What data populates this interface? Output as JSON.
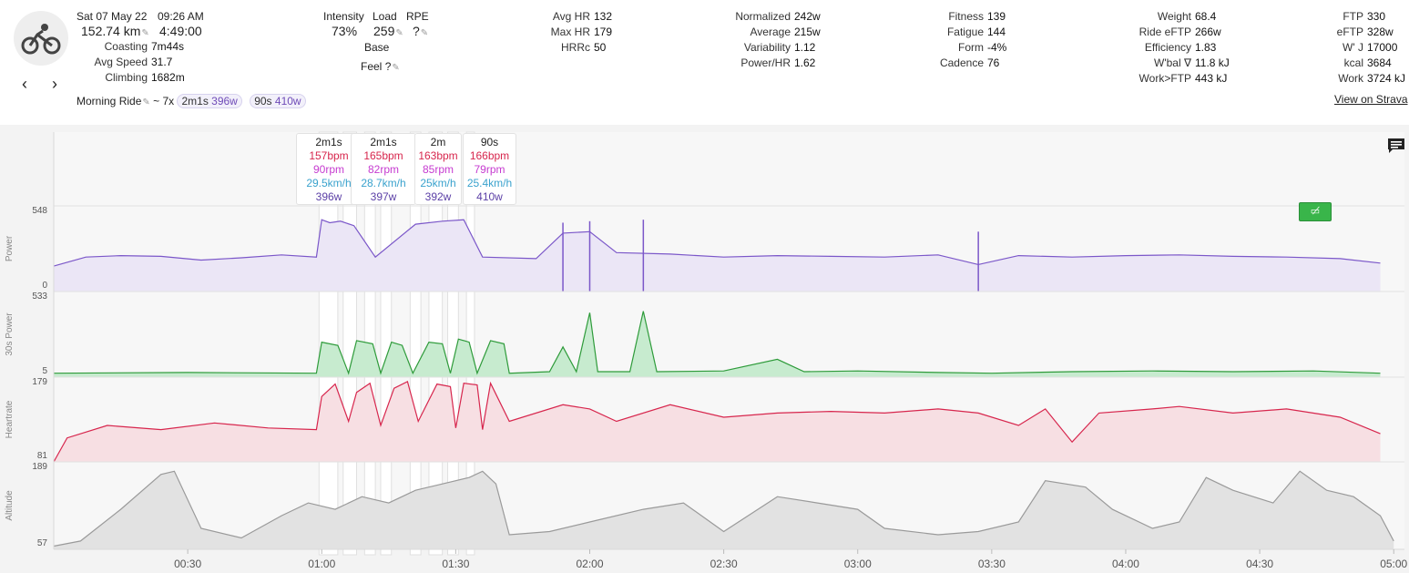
{
  "activity": {
    "date": "Sat 07 May 22",
    "time": "09:26 AM",
    "distance": "152.74 km",
    "duration": "4:49:00",
    "name": "Morning Ride",
    "intervals_count": "~ 7x",
    "interval_chips": [
      {
        "dur": "2m1s",
        "watts": "396w"
      },
      {
        "dur": "90s",
        "watts": "410w"
      }
    ]
  },
  "nav": {
    "prev": "‹",
    "next": "›"
  },
  "left_stats": [
    {
      "label": "Coasting",
      "value": "7m44s"
    },
    {
      "label": "Avg Speed",
      "value": "31.7"
    },
    {
      "label": "Climbing",
      "value": "1682m"
    }
  ],
  "load": {
    "intensity_label": "Intensity",
    "intensity_value": "73%",
    "load_label": "Load",
    "load_value": "259",
    "rpe_label": "RPE",
    "rpe_value": "?",
    "base_label": "Base",
    "feel_label": "Feel",
    "feel_value": "?"
  },
  "col_hr": [
    {
      "label": "Avg HR",
      "value": "132"
    },
    {
      "label": "Max HR",
      "value": "179"
    },
    {
      "label": "HRRc",
      "value": "50"
    }
  ],
  "col_power": [
    {
      "label": "Normalized",
      "value": "242w"
    },
    {
      "label": "Average",
      "value": "215w"
    },
    {
      "label": "Variability",
      "value": "1.12"
    },
    {
      "label": "Power/HR",
      "value": "1.62"
    }
  ],
  "col_fitness": [
    {
      "label": "Fitness",
      "value": "139"
    },
    {
      "label": "Fatigue",
      "value": "144"
    },
    {
      "label": "Form",
      "value": "-4%"
    },
    {
      "label": "Cadence",
      "value": "76"
    }
  ],
  "col_weight": [
    {
      "label": "Weight",
      "value": "68.4"
    },
    {
      "label": "Ride eFTP",
      "value": "266w"
    },
    {
      "label": "Efficiency",
      "value": "1.83"
    },
    {
      "label": "W'bal ∇",
      "value": "11.8 kJ"
    },
    {
      "label": "Work>FTP",
      "value": "443 kJ"
    }
  ],
  "col_ftp": [
    {
      "label": "FTP",
      "value": "330"
    },
    {
      "label": "eFTP",
      "value": "328w"
    },
    {
      "label": "W' J",
      "value": "17000"
    },
    {
      "label": "kcal",
      "value": "3684"
    },
    {
      "label": "Work",
      "value": "3724 kJ"
    }
  ],
  "strava_link": "View on Strava",
  "interval_tooltips": [
    {
      "dur": "2m1s",
      "hr": "157bpm",
      "cad": "90rpm",
      "speed": "29.5km/h",
      "power": "396w"
    },
    {
      "dur": "2m1s",
      "hr": "165bpm",
      "cad": "82rpm",
      "speed": "28.7km/h",
      "power": "397w"
    },
    {
      "dur": "2m",
      "hr": "163bpm",
      "cad": "85rpm",
      "speed": "25km/h",
      "power": "392w"
    },
    {
      "dur": "90s",
      "hr": "166bpm",
      "cad": "79rpm",
      "speed": "25.4km/h",
      "power": "410w"
    }
  ],
  "chart_data": {
    "type": "line",
    "x_unit": "h:mm",
    "x_ticks": [
      "00:30",
      "01:00",
      "01:30",
      "02:00",
      "02:30",
      "03:00",
      "03:30",
      "04:00",
      "04:30",
      "05:00"
    ],
    "panels": [
      {
        "name": "Power",
        "ymin": 0,
        "ymax": 548,
        "color": "#7b57c9",
        "fill": "#ebe6f6",
        "points": [
          [
            0,
            170
          ],
          [
            0.12,
            230
          ],
          [
            0.25,
            240
          ],
          [
            0.4,
            235
          ],
          [
            0.55,
            210
          ],
          [
            0.7,
            225
          ],
          [
            0.85,
            245
          ],
          [
            0.98,
            230
          ],
          [
            1.0,
            480
          ],
          [
            1.03,
            460
          ],
          [
            1.07,
            470
          ],
          [
            1.12,
            440
          ],
          [
            1.2,
            230
          ],
          [
            1.35,
            450
          ],
          [
            1.45,
            470
          ],
          [
            1.53,
            480
          ],
          [
            1.6,
            230
          ],
          [
            1.8,
            220
          ],
          [
            1.9,
            390
          ],
          [
            2.0,
            400
          ],
          [
            2.1,
            260
          ],
          [
            2.3,
            250
          ],
          [
            2.5,
            230
          ],
          [
            2.7,
            240
          ],
          [
            2.9,
            235
          ],
          [
            3.1,
            230
          ],
          [
            3.3,
            245
          ],
          [
            3.45,
            180
          ],
          [
            3.6,
            240
          ],
          [
            3.8,
            230
          ],
          [
            4.0,
            240
          ],
          [
            4.2,
            245
          ],
          [
            4.4,
            235
          ],
          [
            4.6,
            230
          ],
          [
            4.8,
            220
          ],
          [
            4.95,
            190
          ]
        ],
        "spikes": [
          [
            1.9,
            460
          ],
          [
            2.0,
            470
          ],
          [
            2.2,
            480
          ],
          [
            3.45,
            400
          ]
        ]
      },
      {
        "name": "30s Power",
        "ymin": 5,
        "ymax": 533,
        "color": "#2e9b3a",
        "fill": "#c7ebcf",
        "points": [
          [
            0,
            30
          ],
          [
            0.5,
            35
          ],
          [
            0.98,
            30
          ],
          [
            1.0,
            230
          ],
          [
            1.06,
            210
          ],
          [
            1.1,
            30
          ],
          [
            1.13,
            240
          ],
          [
            1.19,
            220
          ],
          [
            1.22,
            30
          ],
          [
            1.26,
            230
          ],
          [
            1.3,
            210
          ],
          [
            1.34,
            30
          ],
          [
            1.4,
            230
          ],
          [
            1.45,
            220
          ],
          [
            1.48,
            30
          ],
          [
            1.51,
            250
          ],
          [
            1.55,
            230
          ],
          [
            1.58,
            30
          ],
          [
            1.63,
            240
          ],
          [
            1.68,
            220
          ],
          [
            1.7,
            30
          ],
          [
            1.85,
            40
          ],
          [
            1.9,
            200
          ],
          [
            1.95,
            40
          ],
          [
            2.0,
            420
          ],
          [
            2.03,
            40
          ],
          [
            2.15,
            40
          ],
          [
            2.2,
            430
          ],
          [
            2.25,
            40
          ],
          [
            2.5,
            45
          ],
          [
            2.7,
            120
          ],
          [
            2.8,
            40
          ],
          [
            3.0,
            45
          ],
          [
            3.3,
            35
          ],
          [
            3.5,
            30
          ],
          [
            3.8,
            40
          ],
          [
            4.1,
            45
          ],
          [
            4.4,
            40
          ],
          [
            4.7,
            45
          ],
          [
            4.95,
            30
          ]
        ]
      },
      {
        "name": "Heartrate",
        "ymin": 81,
        "ymax": 179,
        "color": "#d7264d",
        "fill": "#f7dfe3",
        "points": [
          [
            0,
            81
          ],
          [
            0.05,
            110
          ],
          [
            0.2,
            125
          ],
          [
            0.4,
            120
          ],
          [
            0.6,
            128
          ],
          [
            0.8,
            122
          ],
          [
            0.98,
            120
          ],
          [
            1.0,
            160
          ],
          [
            1.05,
            175
          ],
          [
            1.1,
            130
          ],
          [
            1.13,
            165
          ],
          [
            1.18,
            176
          ],
          [
            1.22,
            125
          ],
          [
            1.27,
            170
          ],
          [
            1.32,
            178
          ],
          [
            1.36,
            130
          ],
          [
            1.43,
            175
          ],
          [
            1.48,
            172
          ],
          [
            1.5,
            122
          ],
          [
            1.53,
            176
          ],
          [
            1.58,
            174
          ],
          [
            1.6,
            120
          ],
          [
            1.63,
            176
          ],
          [
            1.7,
            130
          ],
          [
            1.9,
            150
          ],
          [
            2.0,
            145
          ],
          [
            2.1,
            130
          ],
          [
            2.3,
            150
          ],
          [
            2.5,
            135
          ],
          [
            2.7,
            140
          ],
          [
            2.9,
            142
          ],
          [
            3.1,
            140
          ],
          [
            3.3,
            145
          ],
          [
            3.45,
            140
          ],
          [
            3.6,
            125
          ],
          [
            3.7,
            145
          ],
          [
            3.8,
            105
          ],
          [
            3.9,
            140
          ],
          [
            4.1,
            145
          ],
          [
            4.2,
            148
          ],
          [
            4.4,
            140
          ],
          [
            4.6,
            145
          ],
          [
            4.8,
            135
          ],
          [
            4.95,
            115
          ]
        ]
      },
      {
        "name": "Altitude",
        "ymin": 57,
        "ymax": 189,
        "color": "#9a9a9a",
        "fill": "#e2e2e2",
        "points": [
          [
            0,
            62
          ],
          [
            0.1,
            70
          ],
          [
            0.25,
            120
          ],
          [
            0.4,
            175
          ],
          [
            0.45,
            180
          ],
          [
            0.55,
            90
          ],
          [
            0.7,
            75
          ],
          [
            0.85,
            110
          ],
          [
            0.95,
            130
          ],
          [
            1.05,
            120
          ],
          [
            1.15,
            140
          ],
          [
            1.25,
            130
          ],
          [
            1.35,
            150
          ],
          [
            1.45,
            160
          ],
          [
            1.55,
            170
          ],
          [
            1.6,
            180
          ],
          [
            1.65,
            160
          ],
          [
            1.7,
            80
          ],
          [
            1.85,
            85
          ],
          [
            2.0,
            100
          ],
          [
            2.2,
            120
          ],
          [
            2.35,
            130
          ],
          [
            2.5,
            85
          ],
          [
            2.7,
            140
          ],
          [
            2.85,
            130
          ],
          [
            3.0,
            120
          ],
          [
            3.1,
            90
          ],
          [
            3.3,
            80
          ],
          [
            3.45,
            85
          ],
          [
            3.6,
            100
          ],
          [
            3.7,
            165
          ],
          [
            3.85,
            155
          ],
          [
            3.95,
            120
          ],
          [
            4.1,
            90
          ],
          [
            4.2,
            100
          ],
          [
            4.3,
            170
          ],
          [
            4.4,
            150
          ],
          [
            4.55,
            130
          ],
          [
            4.65,
            180
          ],
          [
            4.75,
            150
          ],
          [
            4.85,
            140
          ],
          [
            4.95,
            110
          ],
          [
            5.0,
            70
          ]
        ]
      }
    ],
    "intervals": [
      [
        0.99,
        1.06
      ],
      [
        1.08,
        1.13
      ],
      [
        1.16,
        1.2
      ],
      [
        1.22,
        1.26
      ],
      [
        1.33,
        1.37
      ],
      [
        1.4,
        1.45
      ],
      [
        1.47,
        1.51
      ],
      [
        1.54,
        1.57
      ]
    ]
  }
}
